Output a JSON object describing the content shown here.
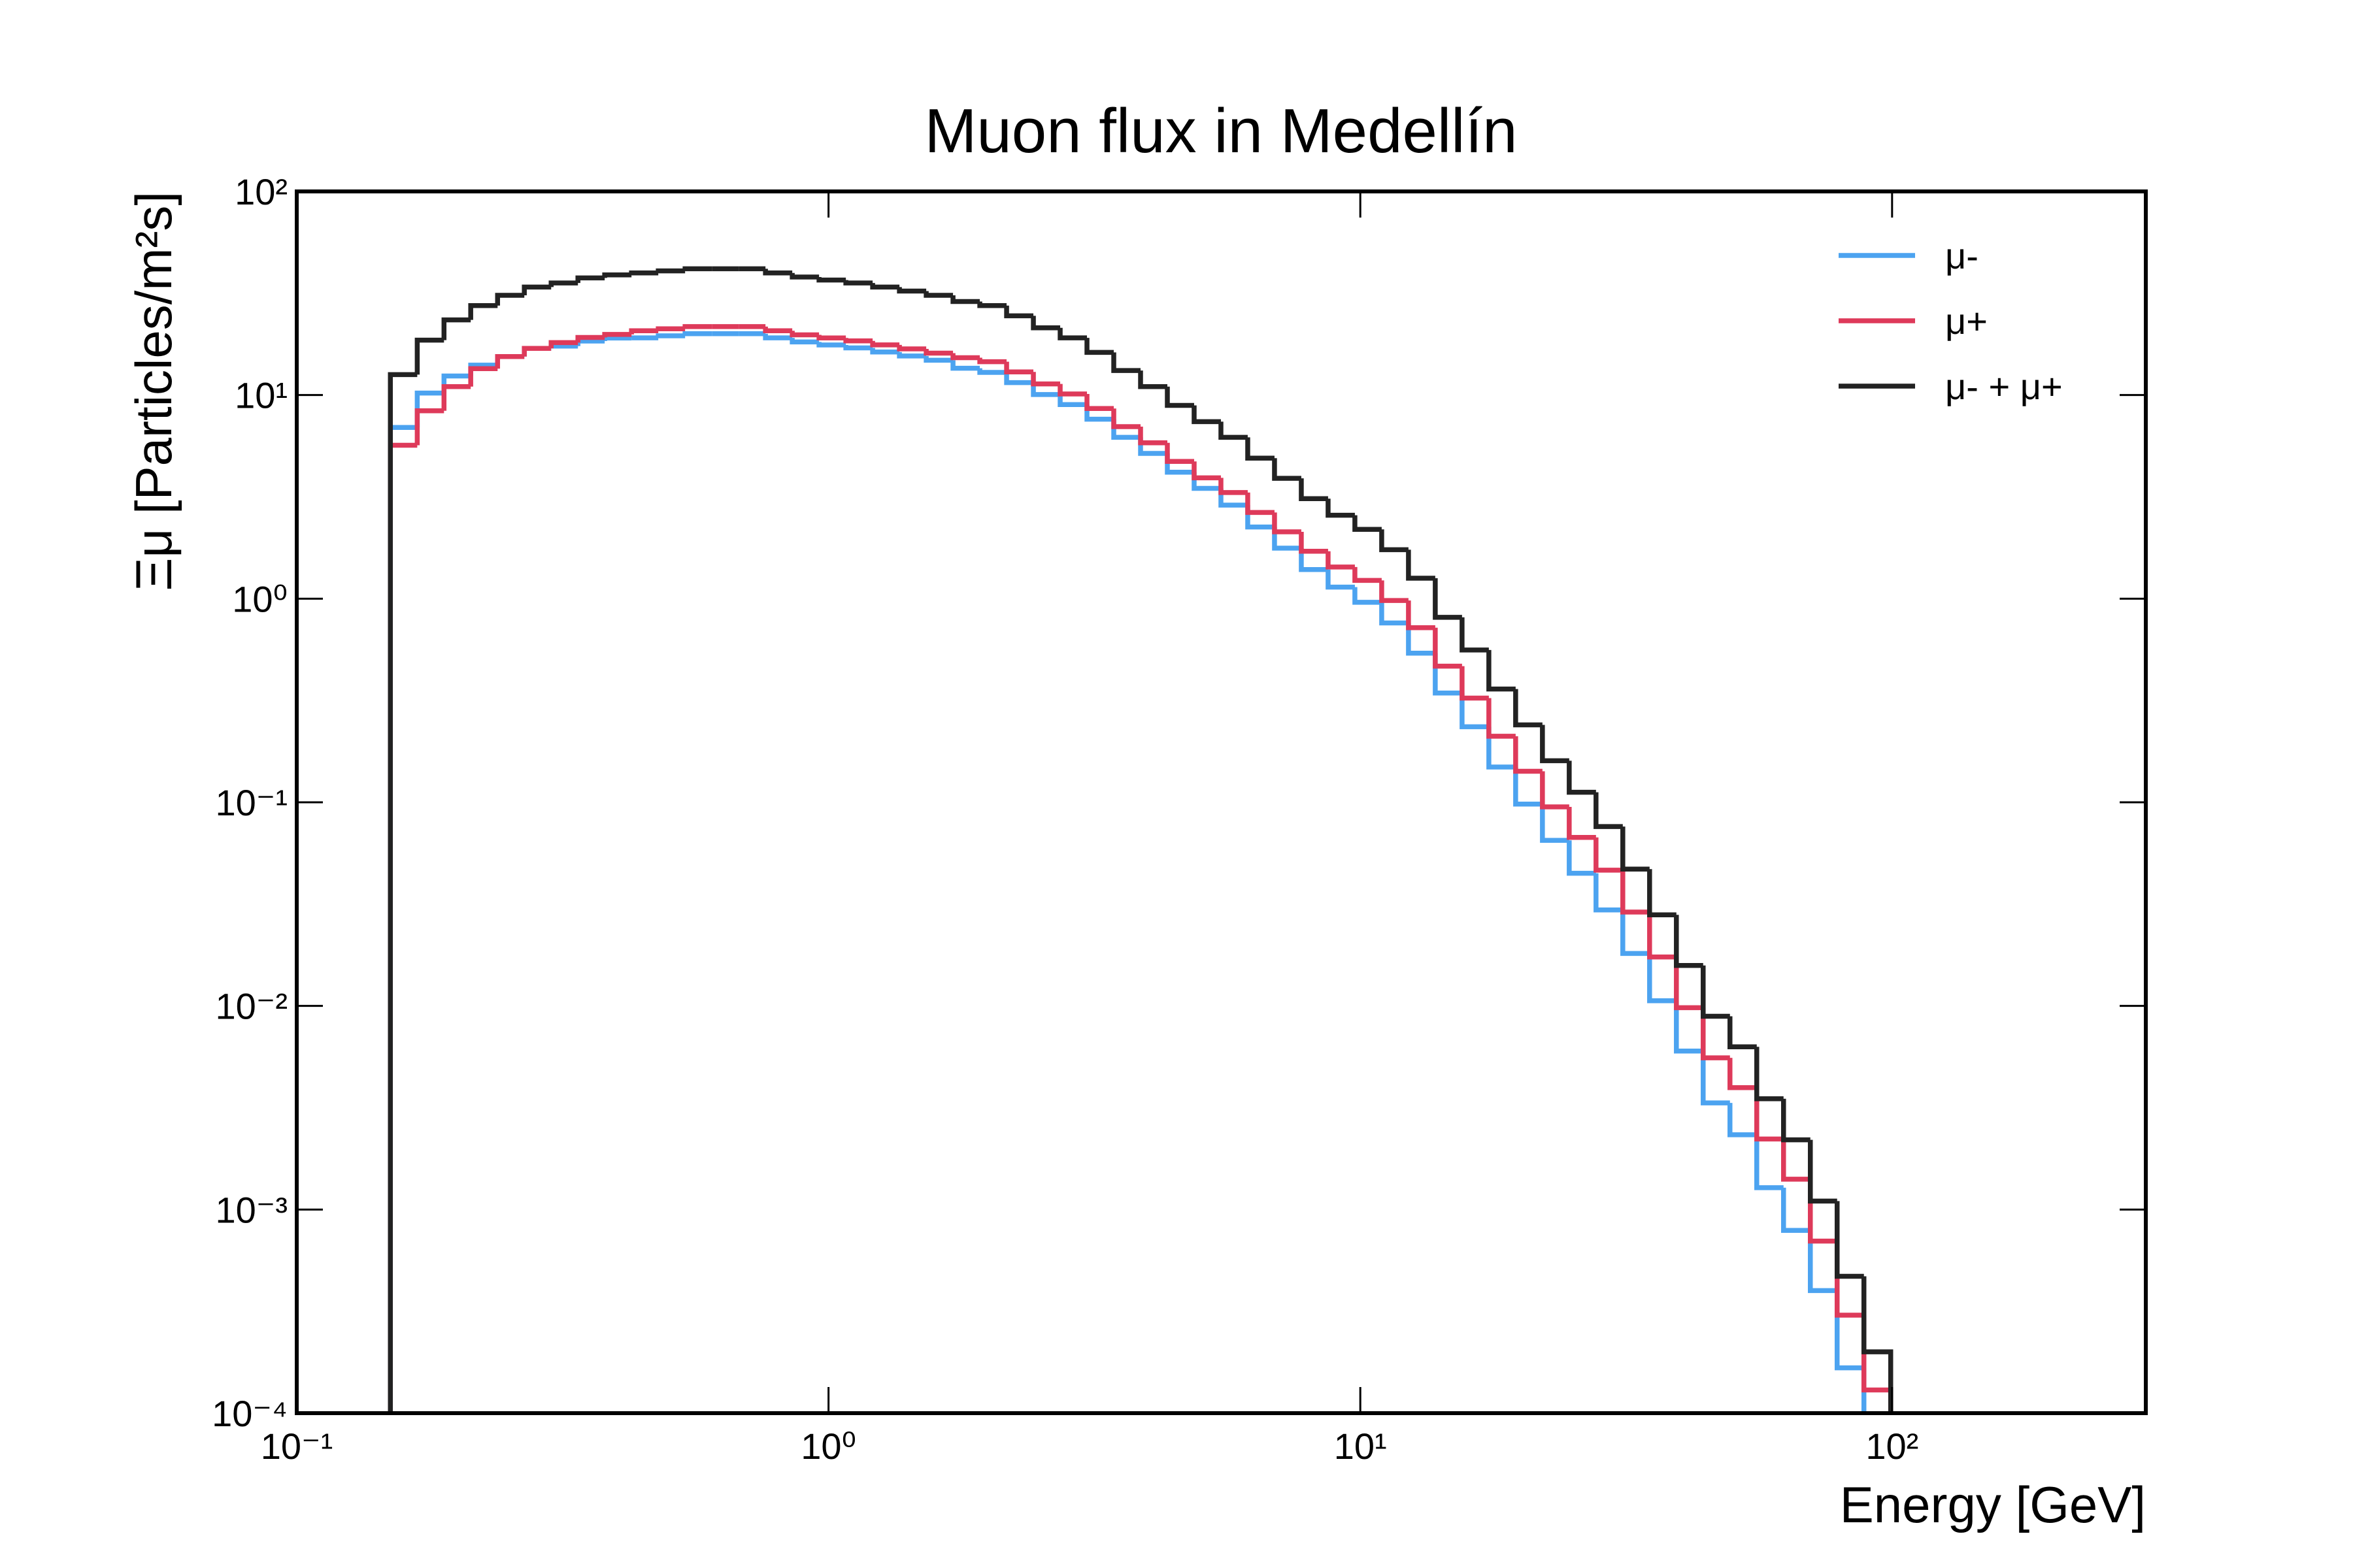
{
  "chart_data": {
    "type": "step-histogram",
    "title": "Muon flux in Medellín",
    "xlabel": "Energy [GeV]",
    "ylabel": "Ξμ [Particles/m²s]",
    "xscale": "log",
    "yscale": "log",
    "xlim": [
      0.1,
      300
    ],
    "ylim": [
      0.0001,
      100
    ],
    "xticks": [
      {
        "value": 0.1,
        "label": "10⁻¹"
      },
      {
        "value": 1,
        "label": "10⁰"
      },
      {
        "value": 10,
        "label": "10¹"
      },
      {
        "value": 100,
        "label": "10²"
      }
    ],
    "yticks": [
      {
        "value": 0.0001,
        "label": "10⁻⁴"
      },
      {
        "value": 0.001,
        "label": "10⁻³"
      },
      {
        "value": 0.01,
        "label": "10⁻²"
      },
      {
        "value": 0.1,
        "label": "10⁻¹"
      },
      {
        "value": 1,
        "label": "10⁰"
      },
      {
        "value": 10,
        "label": "10¹"
      },
      {
        "value": 100,
        "label": "10²"
      }
    ],
    "legend": "upper right",
    "bins": [
      0.15,
      0.1685,
      0.1892,
      0.2124,
      0.2386,
      0.2679,
      0.3009,
      0.3379,
      0.3794,
      0.4261,
      0.4785,
      0.5374,
      0.6035,
      0.6777,
      0.7611,
      0.8547,
      0.9598,
      1.078,
      1.2105,
      1.3594,
      1.5266,
      1.7144,
      1.9253,
      2.1621,
      2.428,
      2.7266,
      3.062,
      3.4386,
      3.8616,
      4.3366,
      4.87,
      5.469,
      6.1417,
      6.8971,
      7.7455,
      8.6982,
      9.7681,
      10.97,
      12.319,
      13.834,
      15.536,
      17.447,
      19.593,
      22.003,
      24.709,
      27.748,
      31.161,
      34.994,
      39.298,
      44.132,
      49.56,
      55.656,
      62.502,
      70.19,
      78.823,
      88.518,
      99.405
    ],
    "series": [
      {
        "name": "μ-",
        "color": "#4ca3f0",
        "values": [
          6.93,
          10.23,
          12.4,
          14.02,
          15.45,
          16.95,
          17.4,
          18.42,
          19.06,
          19.1,
          19.54,
          20.02,
          20.02,
          20.02,
          19.1,
          18.24,
          17.62,
          17.04,
          16.27,
          15.55,
          14.83,
          13.54,
          12.92,
          11.51,
          10.06,
          8.98,
          7.61,
          6.2,
          5.17,
          4.18,
          3.48,
          2.88,
          2.25,
          1.77,
          1.39,
          1.14,
          0.96,
          0.76,
          0.54,
          0.344,
          0.235,
          0.149,
          0.098,
          0.065,
          0.0448,
          0.0296,
          0.0181,
          0.0106,
          0.006,
          0.00334,
          0.00233,
          0.00128,
          0.00079,
          0.0004,
          0.000167,
          7e-05
        ]
      },
      {
        "name": "μ+",
        "color": "#de3a5a",
        "values": [
          5.67,
          8.37,
          11.0,
          13.48,
          15.45,
          16.95,
          18.1,
          19.18,
          19.84,
          20.7,
          21.16,
          21.68,
          21.68,
          21.68,
          20.7,
          19.76,
          19.08,
          18.46,
          17.63,
          16.85,
          16.07,
          15.26,
          14.58,
          12.99,
          11.34,
          10.12,
          8.59,
          7.0,
          5.83,
          4.72,
          3.92,
          3.32,
          2.65,
          2.13,
          1.71,
          1.43,
          1.23,
          0.98,
          0.72,
          0.466,
          0.325,
          0.211,
          0.142,
          0.095,
          0.0672,
          0.0464,
          0.0289,
          0.0174,
          0.0098,
          0.00556,
          0.00397,
          0.00222,
          0.00141,
          0.0007,
          0.000303,
          0.00013
        ]
      },
      {
        "name": "μ- + μ+",
        "color": "#222222",
        "values": [
          12.6,
          18.6,
          23.4,
          27.5,
          30.9,
          33.9,
          35.5,
          37.6,
          38.9,
          39.8,
          40.7,
          41.7,
          41.7,
          41.7,
          39.8,
          38.0,
          36.7,
          35.5,
          33.9,
          32.4,
          30.9,
          28.8,
          27.5,
          24.5,
          21.4,
          19.1,
          16.2,
          13.2,
          11.0,
          8.9,
          7.4,
          6.2,
          4.9,
          3.9,
          3.1,
          2.57,
          2.19,
          1.74,
          1.26,
          0.81,
          0.56,
          0.36,
          0.24,
          0.16,
          0.112,
          0.076,
          0.047,
          0.028,
          0.0158,
          0.0089,
          0.0063,
          0.0035,
          0.0022,
          0.0011,
          0.00047,
          0.0002
        ]
      }
    ]
  }
}
